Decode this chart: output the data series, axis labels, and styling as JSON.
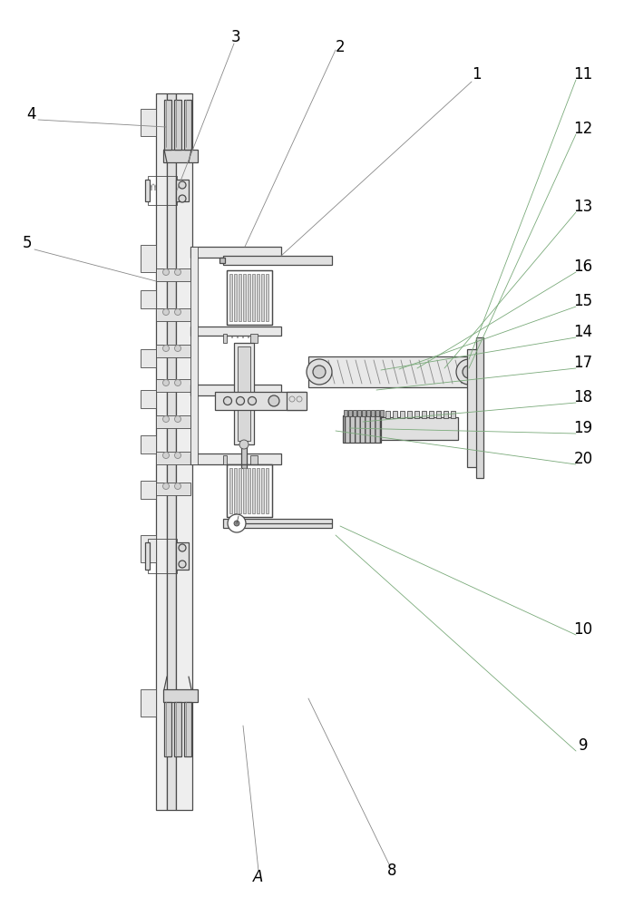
{
  "fig_width": 6.88,
  "fig_height": 10.0,
  "dpi": 100,
  "bg_color": "#ffffff",
  "line_color": "#4a4a4a",
  "line_color2": "#888888",
  "line_color_green": "#7aaa7a"
}
